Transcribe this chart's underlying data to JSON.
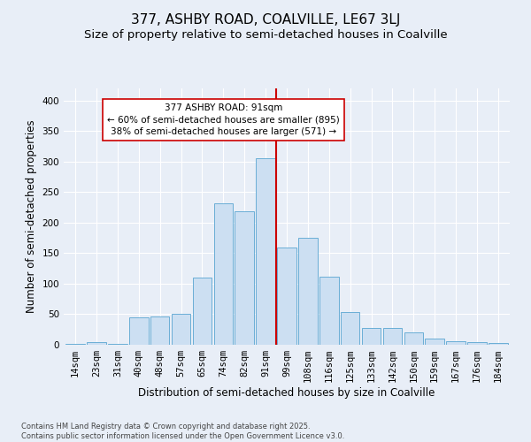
{
  "title1": "377, ASHBY ROAD, COALVILLE, LE67 3LJ",
  "title2": "Size of property relative to semi-detached houses in Coalville",
  "xlabel": "Distribution of semi-detached houses by size in Coalville",
  "ylabel": "Number of semi-detached properties",
  "footnote": "Contains HM Land Registry data © Crown copyright and database right 2025.\nContains public sector information licensed under the Open Government Licence v3.0.",
  "bar_labels": [
    "14sqm",
    "23sqm",
    "31sqm",
    "40sqm",
    "48sqm",
    "57sqm",
    "65sqm",
    "74sqm",
    "82sqm",
    "91sqm",
    "99sqm",
    "108sqm",
    "116sqm",
    "125sqm",
    "133sqm",
    "142sqm",
    "150sqm",
    "159sqm",
    "167sqm",
    "176sqm",
    "184sqm"
  ],
  "bar_heights": [
    2,
    5,
    2,
    45,
    47,
    50,
    110,
    232,
    218,
    305,
    160,
    175,
    112,
    53,
    27,
    27,
    20,
    10,
    6,
    4,
    3
  ],
  "bar_color": "#ccdff2",
  "bar_edge_color": "#6aaed6",
  "property_label": "377 ASHBY ROAD: 91sqm",
  "pct_smaller": 60,
  "n_smaller": 895,
  "pct_larger": 38,
  "n_larger": 571,
  "vline_color": "#cc0000",
  "annotation_box_color": "#cc0000",
  "vline_index": 9,
  "ylim": [
    0,
    420
  ],
  "yticks": [
    0,
    50,
    100,
    150,
    200,
    250,
    300,
    350,
    400
  ],
  "bg_color": "#e8eef7",
  "grid_color": "#ffffff",
  "title1_fontsize": 11,
  "title2_fontsize": 9.5,
  "tick_fontsize": 7.5,
  "axis_label_fontsize": 8.5,
  "annot_fontsize": 7.5,
  "footnote_fontsize": 6
}
